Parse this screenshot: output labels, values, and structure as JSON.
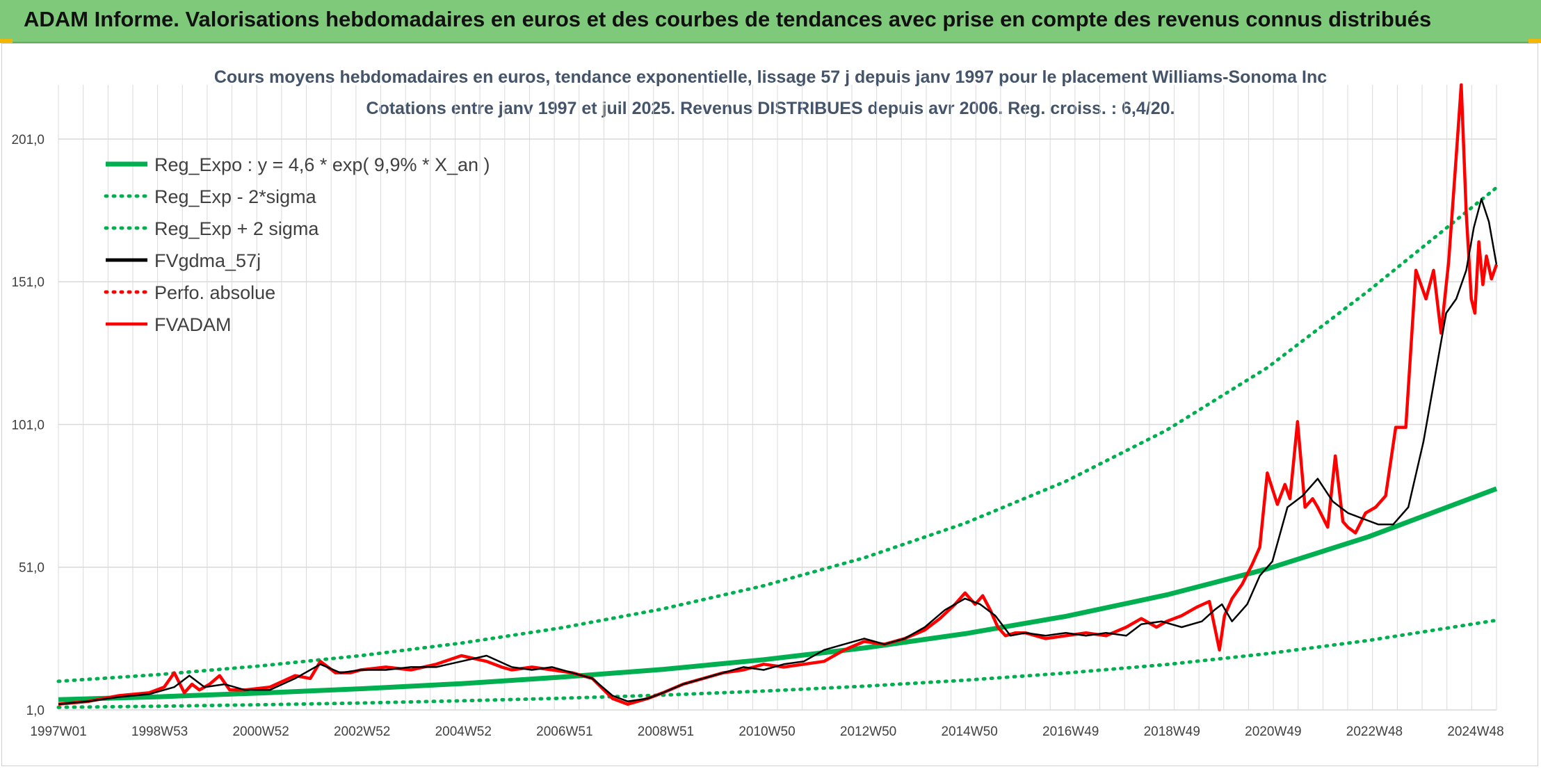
{
  "banner": {
    "title": "ADAM Informe. Valorisations hebdomadaires en euros et des courbes de tendances avec prise en compte des revenus connus distribués"
  },
  "colors": {
    "banner": "#7fc97a",
    "reg_expo": "#00b050",
    "fvgdma": "#000000",
    "fvadam": "#ff0000",
    "gridline": "#d9d9d9"
  },
  "chart_data": {
    "type": "line",
    "title": "Cours moyens hebdomadaires en euros, tendance exponentielle, lissage 57 j depuis janv 1997 pour le placement Williams-Sonoma Inc",
    "subtitle": "Cotations entre janv 1997 et juil 2025. Revenus DISTRIBUES depuis avr 2006. Reg. croiss. : 6,4/20.",
    "xlabel": "",
    "ylabel": "",
    "x_ticks": [
      "1997W01",
      "1998W53",
      "2000W52",
      "2002W52",
      "2004W52",
      "2006W51",
      "2008W51",
      "2010W50",
      "2012W50",
      "2014W50",
      "2016W49",
      "2018W49",
      "2020W49",
      "2022W48",
      "2024W48"
    ],
    "y_ticks": [
      "1,0",
      "51,0",
      "101,0",
      "151,0",
      "201,0"
    ],
    "ylim": [
      1,
      220
    ],
    "xlim": [
      1997.0,
      2025.55
    ],
    "grid": true,
    "legend_position": "top-left",
    "series": [
      {
        "name": "Reg_Expo : y = 4,6 * exp( 9,9% *  X_an )",
        "style": "solid-thick",
        "color": "#00b050",
        "x": [
          1997.0,
          1999.0,
          2001.0,
          2003.0,
          2005.0,
          2007.0,
          2009.0,
          2011.0,
          2013.0,
          2015.0,
          2017.0,
          2019.0,
          2021.0,
          2023.0,
          2025.55
        ],
        "y": [
          4.6,
          5.6,
          6.9,
          8.4,
          10.2,
          12.5,
          15.2,
          18.6,
          22.7,
          27.7,
          33.8,
          41.3,
          50.4,
          61.6,
          78.5
        ]
      },
      {
        "name": "Reg_Exp - 2*sigma",
        "style": "dotted",
        "color": "#00b050",
        "x": [
          1997.0,
          1999.0,
          2001.0,
          2003.0,
          2005.0,
          2007.0,
          2009.0,
          2011.0,
          2013.0,
          2015.0,
          2017.0,
          2019.0,
          2021.0,
          2023.0,
          2025.55
        ],
        "y": [
          1.9,
          2.3,
          2.8,
          3.4,
          4.2,
          5.1,
          6.2,
          7.6,
          9.3,
          11.4,
          13.9,
          16.9,
          20.7,
          25.3,
          32.4
        ]
      },
      {
        "name": "Reg_Exp + 2 sigma",
        "style": "dotted",
        "color": "#00b050",
        "x": [
          1997.0,
          1999.0,
          2001.0,
          2003.0,
          2005.0,
          2007.0,
          2009.0,
          2011.0,
          2013.0,
          2015.0,
          2017.0,
          2019.0,
          2021.0,
          2023.0,
          2025.55
        ],
        "y": [
          11.0,
          13.4,
          16.4,
          20.0,
          24.4,
          29.8,
          36.4,
          44.5,
          54.3,
          66.4,
          81.1,
          99.0,
          120.9,
          147.7,
          184.0
        ]
      },
      {
        "name": "FVgdma_57j",
        "style": "solid",
        "color": "#000000",
        "x": [
          1997.0,
          1997.6,
          1998.2,
          1998.8,
          1999.3,
          1999.6,
          1999.9,
          2000.3,
          2000.7,
          2001.2,
          2001.7,
          2002.2,
          2002.6,
          2003.0,
          2003.5,
          2004.0,
          2004.5,
          2005.0,
          2005.5,
          2006.0,
          2006.4,
          2006.8,
          2007.2,
          2007.6,
          2008.0,
          2008.3,
          2008.7,
          2009.0,
          2009.4,
          2009.8,
          2010.2,
          2010.6,
          2011.0,
          2011.4,
          2011.8,
          2012.2,
          2012.6,
          2013.0,
          2013.4,
          2013.8,
          2014.2,
          2014.6,
          2015.0,
          2015.3,
          2015.6,
          2015.9,
          2016.2,
          2016.6,
          2017.0,
          2017.4,
          2017.8,
          2018.2,
          2018.5,
          2018.9,
          2019.3,
          2019.7,
          2019.95,
          2020.1,
          2020.3,
          2020.6,
          2020.85,
          2021.1,
          2021.4,
          2021.7,
          2022.0,
          2022.3,
          2022.6,
          2022.9,
          2023.2,
          2023.5,
          2023.8,
          2024.1,
          2024.3,
          2024.55,
          2024.75,
          2024.95,
          2025.1,
          2025.25,
          2025.4,
          2025.55
        ],
        "y": [
          3,
          4,
          5.5,
          6.5,
          9,
          13,
          9,
          10,
          8,
          8,
          12,
          17,
          14,
          15,
          15,
          16,
          16,
          18,
          20,
          16,
          15,
          16,
          14,
          12,
          6,
          4,
          5,
          7,
          10,
          12,
          14,
          16,
          15,
          17,
          18,
          22,
          24,
          26,
          24,
          26,
          30,
          36,
          40,
          38,
          34,
          27,
          28,
          27,
          28,
          27,
          28,
          27,
          31,
          32,
          30,
          32,
          36,
          38,
          32,
          38,
          48,
          53,
          72,
          76,
          82,
          74,
          70,
          68,
          66,
          66,
          72,
          95,
          115,
          140,
          145,
          155,
          170,
          180,
          172,
          157
        ]
      },
      {
        "name": "Perfo. absolue",
        "style": "dotted",
        "color": "#ff0000",
        "x": [],
        "y": []
      },
      {
        "name": "FVADAM",
        "style": "solid-thick",
        "color": "#ff0000",
        "x": [
          1997.0,
          1997.6,
          1998.2,
          1998.8,
          1999.1,
          1999.3,
          1999.5,
          1999.65,
          1999.8,
          2000.0,
          2000.2,
          2000.4,
          2000.7,
          2001.2,
          2001.7,
          2002.0,
          2002.2,
          2002.5,
          2002.8,
          2003.0,
          2003.5,
          2004.0,
          2004.5,
          2005.0,
          2005.5,
          2005.8,
          2006.0,
          2006.4,
          2006.8,
          2007.2,
          2007.6,
          2008.0,
          2008.3,
          2008.7,
          2009.0,
          2009.4,
          2009.8,
          2010.2,
          2010.6,
          2011.0,
          2011.4,
          2011.8,
          2012.2,
          2012.6,
          2013.0,
          2013.4,
          2013.8,
          2014.2,
          2014.5,
          2014.8,
          2015.0,
          2015.2,
          2015.35,
          2015.5,
          2015.65,
          2015.8,
          2016.0,
          2016.2,
          2016.6,
          2017.0,
          2017.4,
          2017.8,
          2018.2,
          2018.5,
          2018.8,
          2019.0,
          2019.3,
          2019.6,
          2019.85,
          2020.05,
          2020.15,
          2020.3,
          2020.5,
          2020.7,
          2020.85,
          2021.0,
          2021.2,
          2021.35,
          2021.45,
          2021.6,
          2021.75,
          2021.9,
          2022.0,
          2022.2,
          2022.35,
          2022.5,
          2022.6,
          2022.75,
          2022.95,
          2023.15,
          2023.35,
          2023.55,
          2023.75,
          2023.95,
          2024.15,
          2024.3,
          2024.45,
          2024.6,
          2024.75,
          2024.85,
          2024.95,
          2025.05,
          2025.12,
          2025.2,
          2025.28,
          2025.35,
          2025.45,
          2025.55
        ],
        "y": [
          3,
          4,
          6,
          7,
          9,
          14,
          7,
          10,
          8,
          10,
          13,
          8,
          8,
          9,
          13,
          12,
          18,
          14,
          14,
          15,
          16,
          15,
          17,
          20,
          18,
          16,
          15,
          16,
          15,
          14,
          12,
          5,
          3,
          5,
          7,
          10,
          12,
          14,
          15,
          17,
          16,
          17,
          18,
          22,
          25,
          24,
          26,
          29,
          33,
          38,
          42,
          38,
          41,
          36,
          30,
          27,
          28,
          28,
          26,
          27,
          28,
          27,
          30,
          33,
          30,
          32,
          34,
          37,
          39,
          22,
          34,
          40,
          45,
          52,
          58,
          84,
          73,
          80,
          75,
          102,
          72,
          75,
          72,
          65,
          90,
          67,
          65,
          63,
          70,
          72,
          76,
          100,
          100,
          155,
          145,
          155,
          133,
          158,
          195,
          220,
          175,
          145,
          140,
          165,
          150,
          160,
          152,
          157
        ]
      }
    ]
  }
}
